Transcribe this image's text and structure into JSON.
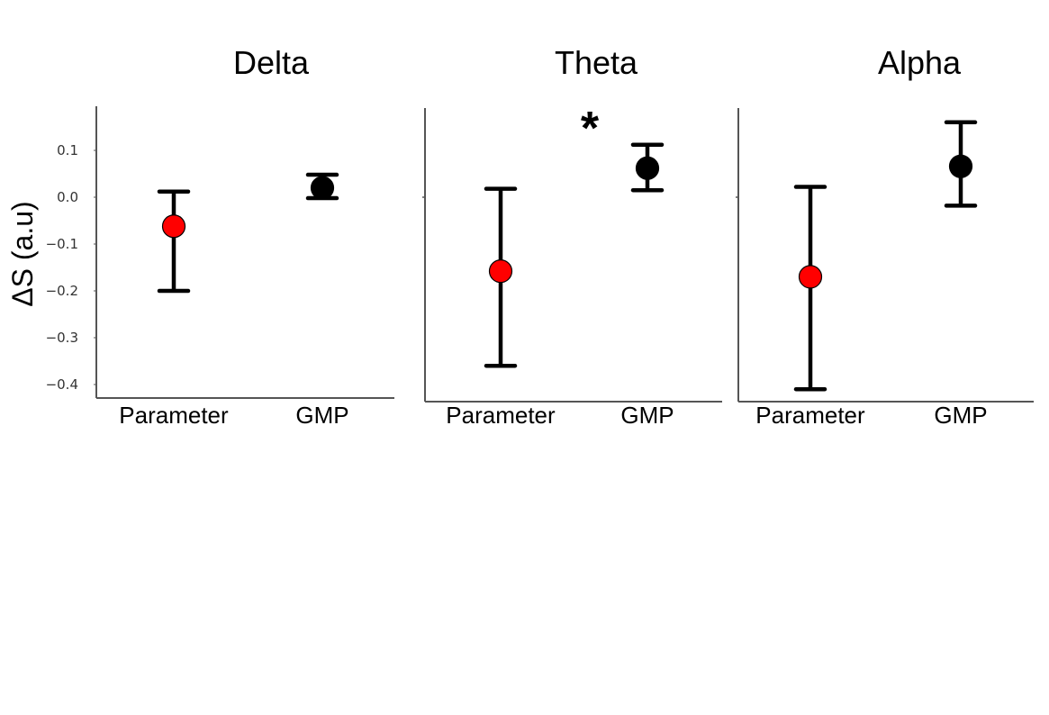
{
  "chart_data": {
    "type": "scatter",
    "ylabel": "ΔS (a.u)",
    "ylim": [
      -0.43,
      0.2
    ],
    "yticks": [
      -0.4,
      -0.3,
      -0.2,
      -0.1,
      0.0,
      0.1
    ],
    "ytick_labels": [
      "−0.4",
      "−0.3",
      "−0.2",
      "−0.1",
      "0.0",
      "0.1"
    ],
    "categories": [
      "Parameter",
      "GMP"
    ],
    "colors": {
      "Parameter": "#ff0000",
      "GMP": "#000000"
    },
    "panels": [
      {
        "title": "Delta",
        "annotation": "",
        "points": [
          {
            "category": "Parameter",
            "mean": -0.062,
            "lower": -0.2,
            "upper": 0.012
          },
          {
            "category": "GMP",
            "mean": 0.02,
            "lower": -0.002,
            "upper": 0.048
          }
        ]
      },
      {
        "title": "Theta",
        "annotation": "*",
        "points": [
          {
            "category": "Parameter",
            "mean": -0.158,
            "lower": -0.36,
            "upper": 0.018
          },
          {
            "category": "GMP",
            "mean": 0.062,
            "lower": 0.015,
            "upper": 0.112
          }
        ]
      },
      {
        "title": "Alpha",
        "annotation": "",
        "points": [
          {
            "category": "Parameter",
            "mean": -0.17,
            "lower": -0.41,
            "upper": 0.022
          },
          {
            "category": "GMP",
            "mean": 0.066,
            "lower": -0.018,
            "upper": 0.16
          }
        ]
      }
    ]
  }
}
